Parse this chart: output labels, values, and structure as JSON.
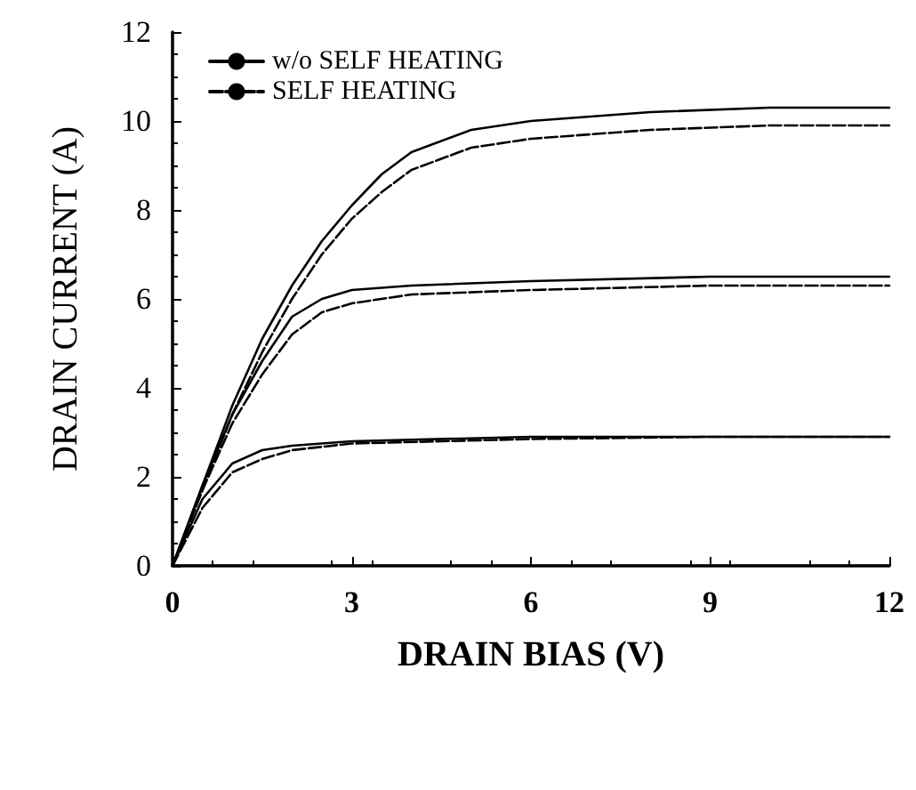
{
  "chart_data": {
    "type": "line",
    "xlabel": "DRAIN BIAS (V)",
    "ylabel": "DRAIN CURRENT (A)",
    "xlim": [
      0,
      12
    ],
    "xticks": [
      0,
      3,
      6,
      9,
      12
    ],
    "ylim": [
      0,
      12
    ],
    "yticks": [
      0,
      2,
      4,
      6,
      8,
      10,
      12
    ],
    "grid": false,
    "legend": "top left",
    "marker": "none",
    "series": [
      {
        "name": "w/o SELF HEATING",
        "color": "#000000",
        "line_style": "solid",
        "x": [
          0,
          0.5,
          1,
          1.5,
          2,
          2.5,
          3,
          3.5,
          4,
          5,
          6,
          8,
          10,
          12
        ],
        "values": [
          0,
          1.8,
          3.6,
          5.1,
          6.3,
          7.3,
          8.1,
          8.8,
          9.3,
          9.8,
          10.0,
          10.2,
          10.3,
          10.3
        ]
      },
      {
        "name": "SELF HEATING",
        "color": "#000000",
        "line_style": "dashed",
        "x": [
          0,
          0.5,
          1,
          1.5,
          2,
          2.5,
          3,
          3.5,
          4,
          5,
          6,
          8,
          10,
          12
        ],
        "values": [
          0,
          1.7,
          3.4,
          4.8,
          6.0,
          7.0,
          7.8,
          8.4,
          8.9,
          9.4,
          9.6,
          9.8,
          9.9,
          9.9
        ]
      },
      {
        "color": "#000000",
        "line_style": "solid",
        "x": [
          0,
          0.5,
          1,
          1.5,
          2,
          2.5,
          3,
          4,
          6,
          9,
          12
        ],
        "values": [
          0,
          1.8,
          3.4,
          4.6,
          5.6,
          6.0,
          6.2,
          6.3,
          6.4,
          6.5,
          6.5
        ]
      },
      {
        "color": "#000000",
        "line_style": "dashed",
        "x": [
          0,
          0.5,
          1,
          1.5,
          2,
          2.5,
          3,
          4,
          6,
          9,
          12
        ],
        "values": [
          0,
          1.7,
          3.2,
          4.3,
          5.2,
          5.7,
          5.9,
          6.1,
          6.2,
          6.3,
          6.3
        ]
      },
      {
        "color": "#000000",
        "line_style": "solid",
        "x": [
          0,
          0.5,
          1,
          1.5,
          2,
          3,
          6,
          9,
          12
        ],
        "values": [
          0,
          1.5,
          2.3,
          2.6,
          2.7,
          2.8,
          2.9,
          2.9,
          2.9
        ]
      },
      {
        "color": "#000000",
        "line_style": "dashed",
        "x": [
          0,
          0.5,
          1,
          1.5,
          2,
          3,
          6,
          9,
          12
        ],
        "values": [
          0,
          1.3,
          2.1,
          2.4,
          2.6,
          2.75,
          2.85,
          2.9,
          2.9
        ]
      },
      {
        "color": "#000000",
        "line_style": "solid",
        "x": [
          0,
          12
        ],
        "values": [
          0,
          0
        ]
      }
    ]
  }
}
